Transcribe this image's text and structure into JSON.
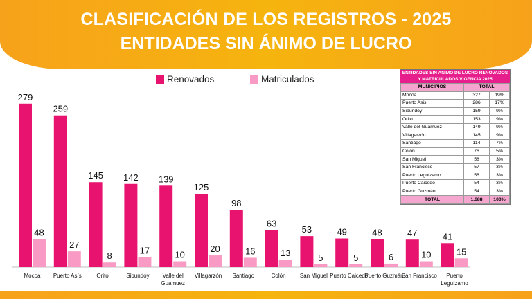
{
  "header": {
    "title_line1": "CLASIFICACIÓN DE LOS REGISTROS - 2025",
    "title_line2": "ENTIDADES SIN ÁNIMO DE LUCRO"
  },
  "colors": {
    "renovados": "#e8136f",
    "matriculados": "#f99ac4",
    "banner": "#f7a81a"
  },
  "chart_data": {
    "type": "bar",
    "categories": [
      "Mocoa",
      "Puerto Asís",
      "Orito",
      "Sibundoy",
      "Valle del Guamuez",
      "Villagarzón",
      "Santiago",
      "Colón",
      "San Miguel",
      "Puerto Caicedo",
      "Puerto Guzmán",
      "San Francisco",
      "Puerto Leguízamo"
    ],
    "series": [
      {
        "name": "Renovados",
        "values": [
          279,
          259,
          145,
          142,
          139,
          125,
          98,
          63,
          53,
          49,
          48,
          47,
          41
        ]
      },
      {
        "name": "Matriculados",
        "values": [
          48,
          27,
          8,
          17,
          10,
          20,
          16,
          13,
          5,
          5,
          6,
          10,
          15
        ]
      }
    ],
    "ylim": [
      0,
      300
    ],
    "grid": false,
    "legend": "top-center"
  },
  "table": {
    "title": "ENTIDADES SIN ANIMO DE LUCRO RENOVADOS Y MATRICULADOS VIGENCIA 2025",
    "col_municipios": "MUNICIPIOS",
    "col_total": "TOTAL",
    "rows": [
      {
        "municipio": "Mocoa",
        "total": "327",
        "pct": "19%"
      },
      {
        "municipio": "Puerto Asis",
        "total": "286",
        "pct": "17%"
      },
      {
        "municipio": "Sibundoy",
        "total": "159",
        "pct": "9%"
      },
      {
        "municipio": "Orito",
        "total": "153",
        "pct": "9%"
      },
      {
        "municipio": "Valle del Guamuez",
        "total": "149",
        "pct": "9%"
      },
      {
        "municipio": "Villagarzón",
        "total": "145",
        "pct": "9%"
      },
      {
        "municipio": "Santiago",
        "total": "114",
        "pct": "7%"
      },
      {
        "municipio": "Colón",
        "total": "76",
        "pct": "5%"
      },
      {
        "municipio": "San Miguel",
        "total": "58",
        "pct": "3%"
      },
      {
        "municipio": "San Francisco",
        "total": "57",
        "pct": "3%"
      },
      {
        "municipio": "Puerto Leguízamo",
        "total": "56",
        "pct": "3%"
      },
      {
        "municipio": "Puerto Caicedo",
        "total": "54",
        "pct": "3%"
      },
      {
        "municipio": "Puerto Guzmán",
        "total": "54",
        "pct": "3%"
      }
    ],
    "total_label": "TOTAL",
    "total_value": "1.688",
    "total_pct": "100%"
  }
}
